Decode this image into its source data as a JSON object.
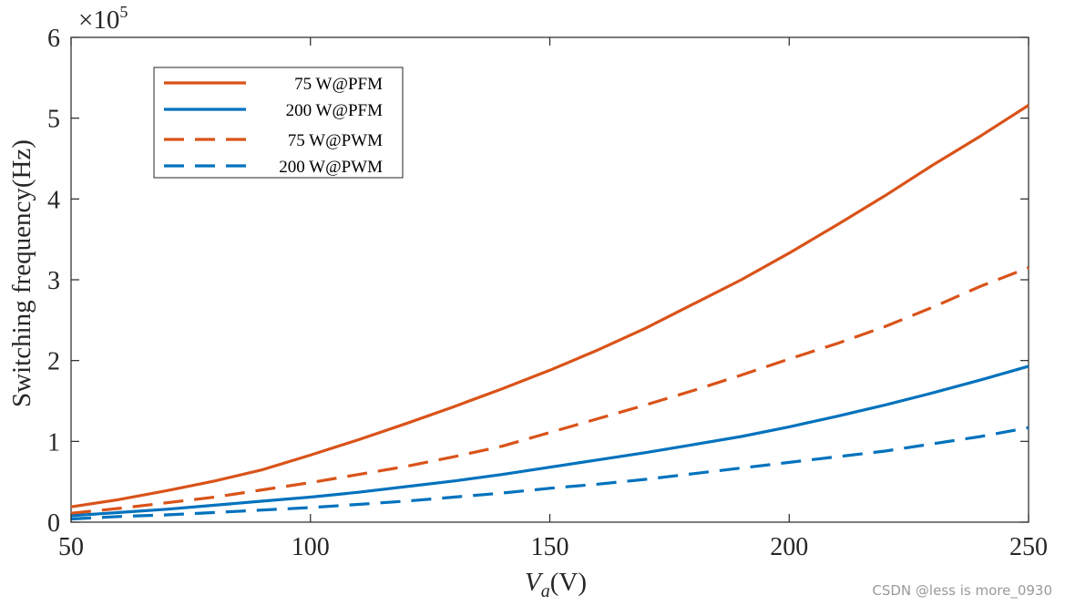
{
  "chart_data": {
    "type": "line",
    "title": "",
    "xlabel": "V_a(V)",
    "xlabel_main": "V",
    "xlabel_sub": "a",
    "xlabel_unit": "(V)",
    "ylabel": "Switching frequency(Hz)",
    "multiplier_label": "×10",
    "multiplier_exp": "5",
    "xlim": [
      50,
      250
    ],
    "ylim": [
      0,
      6
    ],
    "x_ticks": [
      50,
      100,
      150,
      200,
      250
    ],
    "y_ticks": [
      0,
      1,
      2,
      3,
      4,
      5,
      6
    ],
    "grid": false,
    "legend_position": "top-left",
    "x": [
      50,
      60,
      70,
      80,
      90,
      100,
      110,
      120,
      130,
      140,
      150,
      160,
      170,
      180,
      190,
      200,
      210,
      220,
      230,
      240,
      250
    ],
    "series": [
      {
        "name": "75 W@PFM",
        "style": "solid",
        "color": "#D95319",
        "values": [
          0.19,
          0.28,
          0.39,
          0.51,
          0.65,
          0.83,
          1.02,
          1.22,
          1.43,
          1.65,
          1.88,
          2.13,
          2.4,
          2.7,
          3.0,
          3.33,
          3.68,
          4.04,
          4.42,
          4.78,
          5.16
        ]
      },
      {
        "name": "200 W@PFM",
        "style": "solid",
        "color": "#0072BD",
        "values": [
          0.08,
          0.12,
          0.16,
          0.21,
          0.26,
          0.31,
          0.37,
          0.44,
          0.51,
          0.59,
          0.68,
          0.77,
          0.86,
          0.96,
          1.06,
          1.18,
          1.31,
          1.45,
          1.6,
          1.76,
          1.93
        ]
      },
      {
        "name": "75 W@PWM",
        "style": "dashed",
        "color": "#D95319",
        "values": [
          0.11,
          0.17,
          0.24,
          0.31,
          0.4,
          0.49,
          0.59,
          0.69,
          0.81,
          0.94,
          1.11,
          1.28,
          1.45,
          1.63,
          1.82,
          2.02,
          2.21,
          2.42,
          2.66,
          2.92,
          3.15
        ]
      },
      {
        "name": "200 W@PWM",
        "style": "dashed",
        "color": "#0072BD",
        "values": [
          0.04,
          0.07,
          0.09,
          0.12,
          0.15,
          0.18,
          0.22,
          0.26,
          0.31,
          0.36,
          0.42,
          0.47,
          0.53,
          0.6,
          0.67,
          0.74,
          0.81,
          0.88,
          0.97,
          1.06,
          1.17
        ]
      }
    ]
  },
  "watermark": "CSDN @less is more_0930"
}
